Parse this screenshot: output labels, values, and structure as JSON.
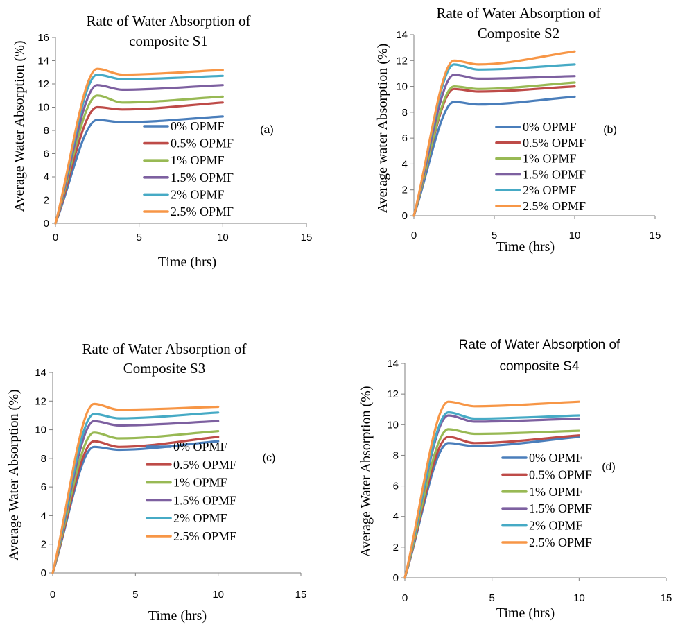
{
  "colors": [
    "#4a7ebb",
    "#be4b48",
    "#98b954",
    "#7d60a0",
    "#46aac5",
    "#f79646"
  ],
  "chart_data": [
    {
      "type": "line",
      "title_lines": [
        "Rate of Water Absorption of",
        "composite S1"
      ],
      "tag": "(a)",
      "xlabel": "Time (hrs)",
      "ylabel": "Average Water Absorption (%)",
      "xlim": [
        0,
        15
      ],
      "ylim": [
        0,
        16
      ],
      "xticks": [
        "0",
        "5",
        "10",
        "15"
      ],
      "yticks": [
        "0",
        "2",
        "4",
        "6",
        "8",
        "10",
        "12",
        "14",
        "16"
      ],
      "grid": false,
      "legend": "center-right",
      "x": [
        0,
        2.5,
        4,
        10
      ],
      "series": [
        {
          "name": "0% OPMF",
          "values": [
            0,
            8.9,
            8.7,
            9.2
          ]
        },
        {
          "name": "0.5% OPMF",
          "values": [
            0,
            10.0,
            9.8,
            10.4
          ]
        },
        {
          "name": "1% OPMF",
          "values": [
            0,
            11.0,
            10.4,
            10.9
          ]
        },
        {
          "name": "1.5% OPMF",
          "values": [
            0,
            11.9,
            11.5,
            11.9
          ]
        },
        {
          "name": "2% OPMF",
          "values": [
            0,
            12.8,
            12.4,
            12.7
          ]
        },
        {
          "name": "2.5% OPMF",
          "values": [
            0,
            13.3,
            12.8,
            13.2
          ]
        }
      ]
    },
    {
      "type": "line",
      "title_lines": [
        "Rate of Water Absorption of",
        "Composite S2"
      ],
      "tag": "(b)",
      "xlabel": "Time (hrs)",
      "ylabel": "Average water Absorption (%)",
      "xlim": [
        0,
        15
      ],
      "ylim": [
        0,
        14
      ],
      "xticks": [
        "0",
        "5",
        "10",
        "15"
      ],
      "yticks": [
        "0",
        "2",
        "4",
        "6",
        "8",
        "10",
        "12",
        "14"
      ],
      "grid": false,
      "legend": "center-right",
      "x": [
        0,
        2.5,
        4,
        10
      ],
      "series": [
        {
          "name": "0% OPMF",
          "values": [
            0,
            8.8,
            8.6,
            9.2
          ]
        },
        {
          "name": "0.5% OPMF",
          "values": [
            0,
            9.8,
            9.6,
            10.0
          ]
        },
        {
          "name": "1% OPMF",
          "values": [
            0,
            10.0,
            9.8,
            10.3
          ]
        },
        {
          "name": "1.5% OPMF",
          "values": [
            0,
            10.9,
            10.6,
            10.8
          ]
        },
        {
          "name": "2% OPMF",
          "values": [
            0,
            11.7,
            11.3,
            11.7
          ]
        },
        {
          "name": "2.5% OPMF",
          "values": [
            0,
            12.0,
            11.7,
            12.7
          ]
        }
      ]
    },
    {
      "type": "line",
      "title_lines": [
        "Rate of  Water Absorption of",
        "Composite S3"
      ],
      "tag": "(c)",
      "xlabel": "Time (hrs)",
      "ylabel": "Average  Water Absorption (%)",
      "xlim": [
        0,
        15
      ],
      "ylim": [
        0,
        14
      ],
      "xticks": [
        "0",
        "5",
        "10",
        "15"
      ],
      "yticks": [
        "0",
        "2",
        "4",
        "6",
        "8",
        "10",
        "12",
        "14"
      ],
      "grid": false,
      "legend": "center-right",
      "x": [
        0,
        2.5,
        4,
        10
      ],
      "series": [
        {
          "name": "0% OPMF",
          "values": [
            0,
            8.8,
            8.6,
            9.2
          ]
        },
        {
          "name": "0.5% OPMF",
          "values": [
            0,
            9.2,
            8.8,
            9.5
          ]
        },
        {
          "name": "1% OPMF",
          "values": [
            0,
            9.8,
            9.4,
            9.9
          ]
        },
        {
          "name": "1.5% OPMF",
          "values": [
            0,
            10.6,
            10.3,
            10.6
          ]
        },
        {
          "name": "2% OPMF",
          "values": [
            0,
            11.1,
            10.8,
            11.2
          ]
        },
        {
          "name": "2.5% OPMF",
          "values": [
            0,
            11.8,
            11.4,
            11.6
          ]
        }
      ]
    },
    {
      "type": "line",
      "title_lines": [
        "Rate of Water Absorption of",
        "composite S4"
      ],
      "tag": "(d)",
      "xlabel": "Time (hrs)",
      "ylabel": "Average Water Absorption (%)",
      "xlim": [
        0,
        15
      ],
      "ylim": [
        0,
        14
      ],
      "xticks": [
        "0",
        "5",
        "10",
        "15"
      ],
      "yticks": [
        "0",
        "2",
        "4",
        "6",
        "8",
        "10",
        "12",
        "14"
      ],
      "grid": false,
      "legend": "center-right",
      "x": [
        0,
        2.5,
        4,
        10
      ],
      "series": [
        {
          "name": "0% OPMF",
          "values": [
            0,
            8.8,
            8.6,
            9.2
          ]
        },
        {
          "name": "0.5% OPMF",
          "values": [
            0,
            9.2,
            8.8,
            9.3
          ]
        },
        {
          "name": "1% OPMF",
          "values": [
            0,
            9.7,
            9.4,
            9.6
          ]
        },
        {
          "name": "1.5% OPMF",
          "values": [
            0,
            10.6,
            10.2,
            10.4
          ]
        },
        {
          "name": "2% OPMF",
          "values": [
            0,
            10.8,
            10.4,
            10.6
          ]
        },
        {
          "name": "2.5% OPMF",
          "values": [
            0,
            11.5,
            11.2,
            11.5
          ]
        }
      ]
    }
  ]
}
